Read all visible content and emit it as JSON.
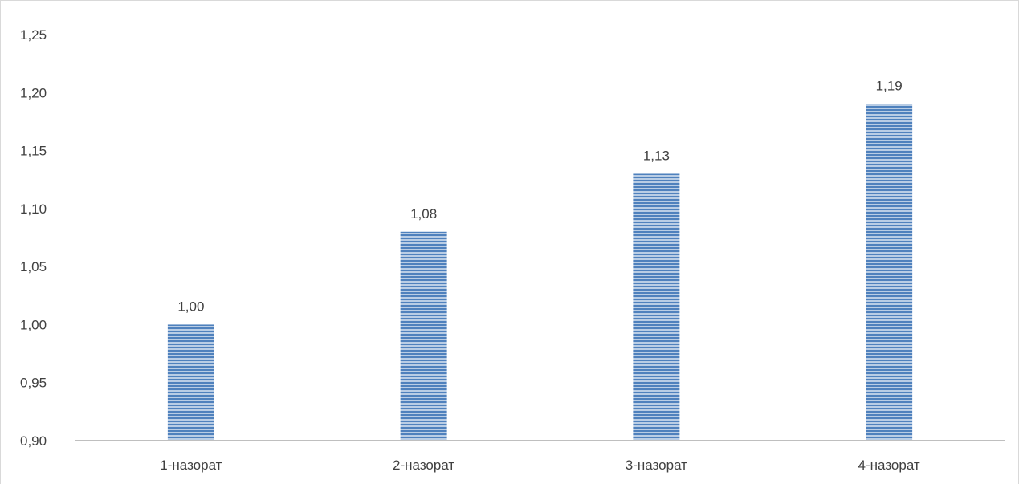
{
  "chart_data": {
    "type": "bar",
    "title": "",
    "xlabel": "",
    "ylabel": "",
    "categories": [
      "1-назорат",
      "2-назорат",
      "3-назорат",
      "4-назорат"
    ],
    "values": [
      1.0,
      1.08,
      1.13,
      1.19
    ],
    "data_labels": [
      "1,00",
      "1,08",
      "1,13",
      "1,19"
    ],
    "ylim": [
      0.9,
      1.25
    ],
    "yticks": [
      0.9,
      0.95,
      1.0,
      1.05,
      1.1,
      1.15,
      1.2,
      1.25
    ],
    "ytick_labels": [
      "0,90",
      "0,95",
      "1,00",
      "1,05",
      "1,10",
      "1,15",
      "1,20",
      "1,25"
    ],
    "grid": false,
    "legend": "none",
    "bar_fill": "horizontal-stripes",
    "colors": {
      "bar_stripe_dark": "#4f81bd",
      "bar_stripe_light": "#b9cde5",
      "axis_line": "#bfbfbf",
      "text": "#404040"
    }
  }
}
